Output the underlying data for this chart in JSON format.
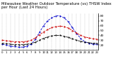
{
  "title": "Milwaukee Weather Outdoor Temperature (vs) THSW Index per Hour (Last 24 Hours)",
  "title_fontsize": 3.8,
  "background_color": "#ffffff",
  "plot_bg_color": "#ffffff",
  "grid_color": "#b0b0b0",
  "hours": [
    0,
    1,
    2,
    3,
    4,
    5,
    6,
    7,
    8,
    9,
    10,
    11,
    12,
    13,
    14,
    15,
    16,
    17,
    18,
    19,
    20,
    21,
    22,
    23
  ],
  "outdoor_temp": [
    30,
    29,
    28,
    27,
    27,
    27,
    28,
    30,
    35,
    41,
    47,
    52,
    56,
    58,
    59,
    58,
    55,
    50,
    45,
    40,
    37,
    35,
    33,
    32
  ],
  "thsw_index": [
    22,
    20,
    18,
    17,
    16,
    16,
    18,
    22,
    32,
    46,
    60,
    70,
    76,
    80,
    80,
    76,
    68,
    56,
    44,
    34,
    27,
    24,
    22,
    22
  ],
  "dew_point": [
    24,
    23,
    22,
    21,
    21,
    21,
    22,
    23,
    26,
    30,
    34,
    37,
    39,
    40,
    40,
    38,
    36,
    33,
    30,
    28,
    26,
    25,
    24,
    24
  ],
  "temp_color": "#cc0000",
  "thsw_color": "#0000cc",
  "dew_color": "#000000",
  "ylim": [
    10,
    85
  ],
  "ytick_values": [
    20,
    30,
    40,
    50,
    60,
    70,
    80
  ],
  "ytick_labels": [
    "20",
    "30",
    "40",
    "50",
    "60",
    "70",
    "80"
  ],
  "ylabel_fontsize": 3.2,
  "xtick_fontsize": 2.8,
  "line_width": 0.6,
  "marker": ".",
  "marker_size": 1.0,
  "vgrid_interval": 2
}
